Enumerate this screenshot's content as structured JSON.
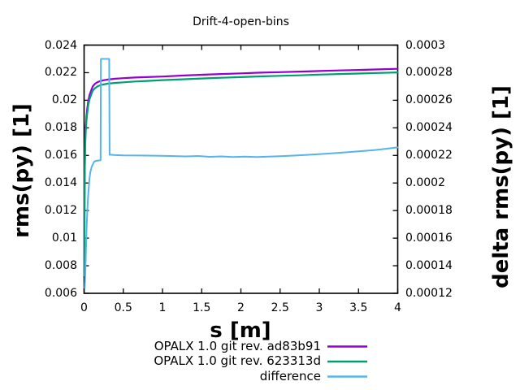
{
  "title": "Drift-4-open-bins",
  "chart_data": {
    "type": "line",
    "title": "Drift-4-open-bins",
    "xlabel": "s [m]",
    "ylabel": "rms(py) [1]",
    "y2label": "delta rms(py) [1]",
    "xlim": [
      0,
      4
    ],
    "ylim": [
      0.006,
      0.024
    ],
    "y2lim": [
      0.00012,
      0.0003
    ],
    "grid": false,
    "legend_position": "below-right",
    "axis_color": "#000000",
    "background_color": "#ffffff",
    "xticks": [
      {
        "v": 0,
        "t": "0"
      },
      {
        "v": 0.5,
        "t": "0.5"
      },
      {
        "v": 1,
        "t": "1"
      },
      {
        "v": 1.5,
        "t": "1.5"
      },
      {
        "v": 2,
        "t": "2"
      },
      {
        "v": 2.5,
        "t": "2.5"
      },
      {
        "v": 3,
        "t": "3"
      },
      {
        "v": 3.5,
        "t": "3.5"
      },
      {
        "v": 4,
        "t": "4"
      }
    ],
    "yticks": [
      {
        "v": 0.006,
        "t": "0.006"
      },
      {
        "v": 0.008,
        "t": "0.008"
      },
      {
        "v": 0.01,
        "t": "0.01"
      },
      {
        "v": 0.012,
        "t": "0.012"
      },
      {
        "v": 0.014,
        "t": "0.014"
      },
      {
        "v": 0.016,
        "t": "0.016"
      },
      {
        "v": 0.018,
        "t": "0.018"
      },
      {
        "v": 0.02,
        "t": "0.02"
      },
      {
        "v": 0.022,
        "t": "0.022"
      },
      {
        "v": 0.024,
        "t": "0.024"
      }
    ],
    "y2ticks": [
      {
        "v": 0.00012,
        "t": "0.00012"
      },
      {
        "v": 0.00014,
        "t": "0.00014"
      },
      {
        "v": 0.00016,
        "t": "0.00016"
      },
      {
        "v": 0.00018,
        "t": "0.00018"
      },
      {
        "v": 0.0002,
        "t": "0.0002"
      },
      {
        "v": 0.00022,
        "t": "0.00022"
      },
      {
        "v": 0.00024,
        "t": "0.00024"
      },
      {
        "v": 0.00026,
        "t": "0.00026"
      },
      {
        "v": 0.00028,
        "t": "0.00028"
      },
      {
        "v": 0.0003,
        "t": "0.0003"
      }
    ],
    "series": [
      {
        "name": "OPALX 1.0 git rev. ad83b91",
        "color": "#9400d3",
        "axis": "y1",
        "line_width": 2.2,
        "points": [
          [
            0.002,
            0.0075
          ],
          [
            0.004,
            0.0105
          ],
          [
            0.006,
            0.013
          ],
          [
            0.008,
            0.0147
          ],
          [
            0.01,
            0.0158
          ],
          [
            0.013,
            0.0167
          ],
          [
            0.017,
            0.0175
          ],
          [
            0.022,
            0.0181
          ],
          [
            0.03,
            0.0188
          ],
          [
            0.04,
            0.0194
          ],
          [
            0.055,
            0.02
          ],
          [
            0.07,
            0.0204
          ],
          [
            0.09,
            0.0207
          ],
          [
            0.11,
            0.021
          ],
          [
            0.14,
            0.0212
          ],
          [
            0.17,
            0.02131
          ],
          [
            0.2,
            0.02138
          ],
          [
            0.24,
            0.02144
          ],
          [
            0.3,
            0.0215
          ],
          [
            0.4,
            0.02156
          ],
          [
            0.5,
            0.0216
          ],
          [
            0.65,
            0.02165
          ],
          [
            0.8,
            0.02168
          ],
          [
            1.0,
            0.02172
          ],
          [
            1.25,
            0.02179
          ],
          [
            1.5,
            0.02185
          ],
          [
            1.75,
            0.0219
          ],
          [
            2.0,
            0.02195
          ],
          [
            2.25,
            0.022
          ],
          [
            2.5,
            0.02204
          ],
          [
            2.75,
            0.02208
          ],
          [
            3.0,
            0.02212
          ],
          [
            3.25,
            0.02216
          ],
          [
            3.5,
            0.0222
          ],
          [
            3.75,
            0.02224
          ],
          [
            4.0,
            0.02228
          ]
        ]
      },
      {
        "name": "OPALX 1.0 git rev. 623313d",
        "color": "#009e73",
        "axis": "y1",
        "line_width": 2.2,
        "points": [
          [
            0.002,
            0.0073
          ],
          [
            0.004,
            0.0102
          ],
          [
            0.006,
            0.0127
          ],
          [
            0.008,
            0.0144
          ],
          [
            0.01,
            0.0155
          ],
          [
            0.013,
            0.0164
          ],
          [
            0.017,
            0.0172
          ],
          [
            0.022,
            0.0178
          ],
          [
            0.03,
            0.0185
          ],
          [
            0.04,
            0.0191
          ],
          [
            0.055,
            0.0197
          ],
          [
            0.07,
            0.0201
          ],
          [
            0.09,
            0.0204
          ],
          [
            0.11,
            0.0207
          ],
          [
            0.14,
            0.02088
          ],
          [
            0.17,
            0.021
          ],
          [
            0.2,
            0.02108
          ],
          [
            0.24,
            0.02114
          ],
          [
            0.3,
            0.0212
          ],
          [
            0.4,
            0.02126
          ],
          [
            0.5,
            0.0213
          ],
          [
            0.65,
            0.02136
          ],
          [
            0.8,
            0.0214
          ],
          [
            1.0,
            0.02146
          ],
          [
            1.25,
            0.02152
          ],
          [
            1.5,
            0.02158
          ],
          [
            1.75,
            0.02163
          ],
          [
            2.0,
            0.02168
          ],
          [
            2.25,
            0.02173
          ],
          [
            2.5,
            0.02177
          ],
          [
            2.75,
            0.02181
          ],
          [
            3.0,
            0.02186
          ],
          [
            3.25,
            0.0219
          ],
          [
            3.5,
            0.02194
          ],
          [
            3.75,
            0.02198
          ],
          [
            4.0,
            0.02202
          ]
        ]
      },
      {
        "name": "difference",
        "color": "#56b4e9",
        "axis": "y2",
        "line_width": 2.0,
        "points": [
          [
            0.008,
            0.000124
          ],
          [
            0.012,
            0.000129
          ],
          [
            0.016,
            0.000134
          ],
          [
            0.02,
            0.000143
          ],
          [
            0.026,
            0.000156
          ],
          [
            0.033,
            0.000169
          ],
          [
            0.04,
            0.000179
          ],
          [
            0.048,
            0.000187
          ],
          [
            0.056,
            0.000194
          ],
          [
            0.068,
            0.000203
          ],
          [
            0.08,
            0.000208
          ],
          [
            0.098,
            0.000212
          ],
          [
            0.115,
            0.000214
          ],
          [
            0.13,
            0.0002155
          ],
          [
            0.15,
            0.000216
          ],
          [
            0.175,
            0.0002163
          ],
          [
            0.21,
            0.0002165
          ],
          [
            0.215,
            0.00029
          ],
          [
            0.32,
            0.00029
          ],
          [
            0.325,
            0.0002205
          ],
          [
            0.4,
            0.0002202
          ],
          [
            0.5,
            0.00022
          ],
          [
            0.7,
            0.0002199
          ],
          [
            0.9,
            0.0002198
          ],
          [
            1.1,
            0.0002196
          ],
          [
            1.3,
            0.0002193
          ],
          [
            1.45,
            0.0002196
          ],
          [
            1.6,
            0.000219
          ],
          [
            1.75,
            0.0002193
          ],
          [
            1.9,
            0.0002188
          ],
          [
            2.05,
            0.0002191
          ],
          [
            2.2,
            0.0002188
          ],
          [
            2.35,
            0.0002191
          ],
          [
            2.5,
            0.0002194
          ],
          [
            2.7,
            0.0002199
          ],
          [
            2.9,
            0.0002206
          ],
          [
            3.1,
            0.0002213
          ],
          [
            3.3,
            0.0002221
          ],
          [
            3.5,
            0.000223
          ],
          [
            3.7,
            0.0002239
          ],
          [
            3.85,
            0.0002248
          ],
          [
            4.0,
            0.0002258
          ]
        ]
      }
    ]
  },
  "legend": {
    "entries": [
      {
        "label": "OPALX 1.0 git rev. ad83b91",
        "color": "#9400d3"
      },
      {
        "label": "OPALX 1.0 git rev. 623313d",
        "color": "#009e73"
      },
      {
        "label": "difference",
        "color": "#56b4e9"
      }
    ]
  }
}
